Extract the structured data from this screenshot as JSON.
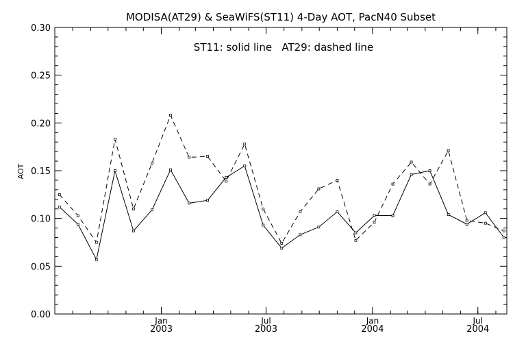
{
  "chart_data": {
    "type": "line",
    "title": "MODISA(AT29) & SeaWiFS(ST11) 4-Day AOT, PacN40 Subset",
    "annotation": "ST11: solid line   AT29: dashed line",
    "xlabel": "",
    "ylabel": "AOT",
    "ylim": [
      0.0,
      0.3
    ],
    "yticks": [
      "0.00",
      "0.05",
      "0.10",
      "0.15",
      "0.20",
      "0.25",
      "0.30"
    ],
    "xticks": [
      {
        "month": "Jan",
        "year": "2003"
      },
      {
        "month": "Jul",
        "year": "2003"
      },
      {
        "month": "Jan",
        "year": "2004"
      },
      {
        "month": "Jul",
        "year": "2004"
      }
    ],
    "grid": false,
    "x": [
      "2002-07-09",
      "2002-08-10",
      "2002-09-11",
      "2002-10-13",
      "2002-11-14",
      "2002-12-16",
      "2003-01-17",
      "2003-02-18",
      "2003-03-22",
      "2003-04-23",
      "2003-05-25",
      "2003-06-26",
      "2003-07-28",
      "2003-08-29",
      "2003-09-30",
      "2003-11-01",
      "2003-12-03",
      "2004-01-04",
      "2004-02-05",
      "2004-03-08",
      "2004-04-09",
      "2004-05-11",
      "2004-06-12",
      "2004-07-14",
      "2004-08-15"
    ],
    "series": [
      {
        "name": "ST11",
        "style": "solid",
        "values": [
          0.112,
          0.094,
          0.057,
          0.15,
          0.087,
          0.109,
          0.151,
          0.116,
          0.119,
          0.143,
          0.155,
          0.093,
          0.069,
          0.083,
          0.091,
          0.107,
          0.085,
          0.103,
          0.103,
          0.146,
          0.15,
          0.104,
          0.094,
          0.106,
          0.08
        ]
      },
      {
        "name": "AT29",
        "style": "dashed",
        "values": [
          0.125,
          0.103,
          0.075,
          0.183,
          0.11,
          0.158,
          0.208,
          0.164,
          0.165,
          0.139,
          0.178,
          0.11,
          0.074,
          0.107,
          0.131,
          0.14,
          0.077,
          0.096,
          0.136,
          0.159,
          0.136,
          0.171,
          0.098,
          0.095,
          0.087
        ]
      }
    ]
  }
}
